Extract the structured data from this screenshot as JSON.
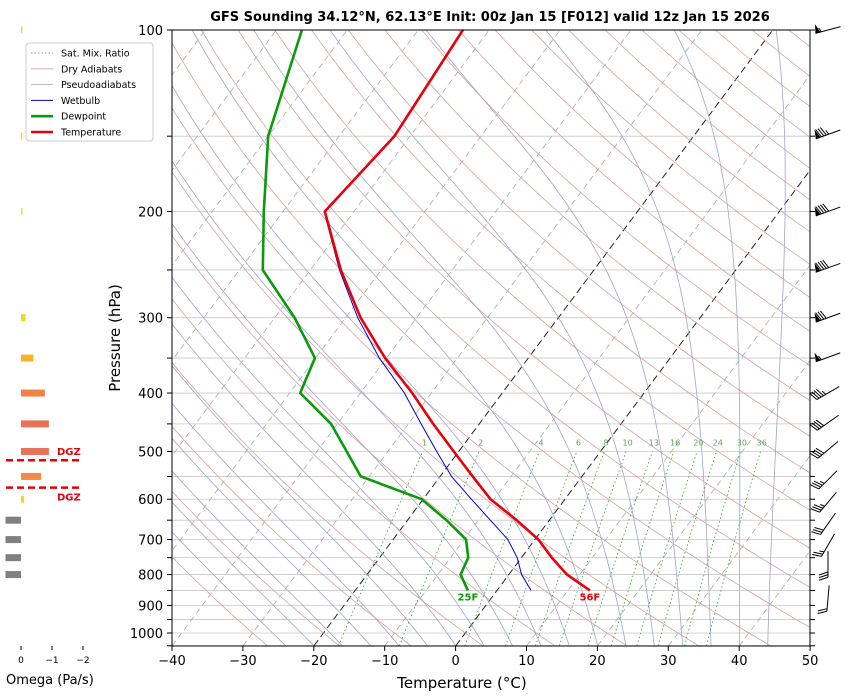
{
  "chart_data": {
    "type": "line",
    "subtype": "skew-t",
    "title": "GFS Sounding 34.12°N, 62.13°E Init: 00z Jan 15 [F012] valid 12z Jan 15 2026",
    "xlabel": "Temperature (°C)",
    "ylabel": "Pressure (hPa)",
    "xlim": [
      -40,
      50
    ],
    "ylim": [
      1050,
      100
    ],
    "x_ticks": [
      "−40",
      "−30",
      "−20",
      "−10",
      "0",
      "10",
      "20",
      "30",
      "40",
      "50"
    ],
    "x_tick_values": [
      -40,
      -30,
      -20,
      -10,
      0,
      10,
      20,
      30,
      40,
      50
    ],
    "y_ticks": [
      "100",
      "200",
      "300",
      "400",
      "500",
      "600",
      "700",
      "800",
      "900",
      "1000"
    ],
    "y_tick_values": [
      100,
      200,
      300,
      400,
      500,
      600,
      700,
      800,
      900,
      1000
    ],
    "grid_pressures": [
      100,
      150,
      200,
      250,
      300,
      350,
      400,
      450,
      500,
      550,
      600,
      650,
      700,
      750,
      800,
      850,
      900,
      950,
      1000,
      1050
    ],
    "legend": {
      "placement": "top-left",
      "entries": [
        "Sat. Mix. Ratio",
        "Dry Adiabats",
        "Pseudoadiabats",
        "Wetbulb",
        "Dewpoint",
        "Temperature"
      ]
    },
    "series": [
      {
        "name": "Temperature",
        "color": "#e8000b",
        "pressure": [
          850,
          800,
          750,
          700,
          650,
          600,
          550,
          500,
          450,
          400,
          350,
          300,
          250,
          200,
          150,
          100
        ],
        "values": [
          13.1,
          8.2,
          4.3,
          0.5,
          -4.6,
          -10.5,
          -15.4,
          -20.7,
          -26.5,
          -32.7,
          -40.2,
          -47.9,
          -55.7,
          -64.1,
          -62.2,
          -63.7
        ]
      },
      {
        "name": "Dewpoint",
        "color": "#0b9a0b",
        "pressure": [
          850,
          800,
          750,
          700,
          650,
          600,
          550,
          500,
          450,
          400,
          350,
          300,
          250,
          200,
          150,
          100
        ],
        "values": [
          -4.1,
          -6.8,
          -7.5,
          -9.7,
          -14.5,
          -20.2,
          -31.2,
          -35.8,
          -40.9,
          -48.5,
          -50.1,
          -57.2,
          -66.7,
          -72.7,
          -80.0,
          -86.4
        ]
      },
      {
        "name": "Wetbulb",
        "color": "#0000cc",
        "pressure": [
          850,
          800,
          750,
          700,
          600,
          550,
          500,
          450,
          400,
          350,
          300,
          250,
          200,
          150,
          100
        ],
        "values": [
          4.8,
          1.8,
          -0.6,
          -3.8,
          -13.2,
          -18.4,
          -23.1,
          -28.2,
          -33.8,
          -41.0,
          -48.3,
          -55.9,
          -64.2,
          -62.3,
          -63.8
        ]
      }
    ],
    "surface_labels": [
      {
        "text": "25F",
        "series": "Dewpoint",
        "color": "#0b9a0b"
      },
      {
        "text": "56F",
        "series": "Temperature",
        "color": "#e8000b"
      }
    ],
    "mixing_ratio_labels": [
      "1",
      "2",
      "4",
      "6",
      "8",
      "10",
      "13",
      "16",
      "20",
      "24",
      "30",
      "36"
    ],
    "mixing_ratio_values": [
      1,
      2,
      4,
      6,
      8,
      10,
      13,
      16,
      20,
      24,
      30,
      36
    ],
    "highlight_isotherms": [
      0,
      -20
    ],
    "wind_barbs": [
      {
        "p": 100,
        "dir": 255,
        "kt": 55
      },
      {
        "p": 149,
        "dir": 250,
        "kt": 85
      },
      {
        "p": 200,
        "dir": 250,
        "kt": 90
      },
      {
        "p": 248,
        "dir": 250,
        "kt": 90
      },
      {
        "p": 300,
        "dir": 250,
        "kt": 80
      },
      {
        "p": 349,
        "dir": 250,
        "kt": 55
      },
      {
        "p": 400,
        "dir": 240,
        "kt": 45
      },
      {
        "p": 448,
        "dir": 235,
        "kt": 40
      },
      {
        "p": 497,
        "dir": 230,
        "kt": 40
      },
      {
        "p": 557,
        "dir": 225,
        "kt": 35
      },
      {
        "p": 607,
        "dir": 220,
        "kt": 35
      },
      {
        "p": 659,
        "dir": 215,
        "kt": 30
      },
      {
        "p": 715,
        "dir": 210,
        "kt": 25
      },
      {
        "p": 769,
        "dir": 180,
        "kt": 30
      },
      {
        "p": 876,
        "dir": 185,
        "kt": 20
      }
    ],
    "omega": {
      "xlabel": "Omega (Pa/s)",
      "x_ticks": [
        "0",
        "−1",
        "−2"
      ],
      "x_tick_values": [
        0,
        -1,
        -2
      ],
      "bars": [
        {
          "p": 100,
          "value": -0.03,
          "color": "#f2e030"
        },
        {
          "p": 150,
          "value": -0.03,
          "color": "#f2e030"
        },
        {
          "p": 200,
          "value": -0.03,
          "color": "#f2e030"
        },
        {
          "p": 300,
          "value": -0.15,
          "color": "#f2d82a"
        },
        {
          "p": 350,
          "value": -0.4,
          "color": "#f7b12f"
        },
        {
          "p": 400,
          "value": -0.77,
          "color": "#ef8446"
        },
        {
          "p": 450,
          "value": -0.9,
          "color": "#e8735a"
        },
        {
          "p": 500,
          "value": -0.9,
          "color": "#e8735a"
        },
        {
          "p": 550,
          "value": -0.65,
          "color": "#f08c48"
        },
        {
          "p": 600,
          "value": -0.1,
          "color": "#f2d82a"
        },
        {
          "p": 650,
          "value": 0.5,
          "color": "#808080"
        },
        {
          "p": 700,
          "value": 0.5,
          "color": "#808080"
        },
        {
          "p": 750,
          "value": 0.5,
          "color": "#808080"
        },
        {
          "p": 800,
          "value": 0.5,
          "color": "#808080"
        }
      ],
      "dgz": {
        "label": "DGZ",
        "top_p": 517,
        "bottom_p": 574,
        "color": "#e8000b"
      }
    }
  }
}
